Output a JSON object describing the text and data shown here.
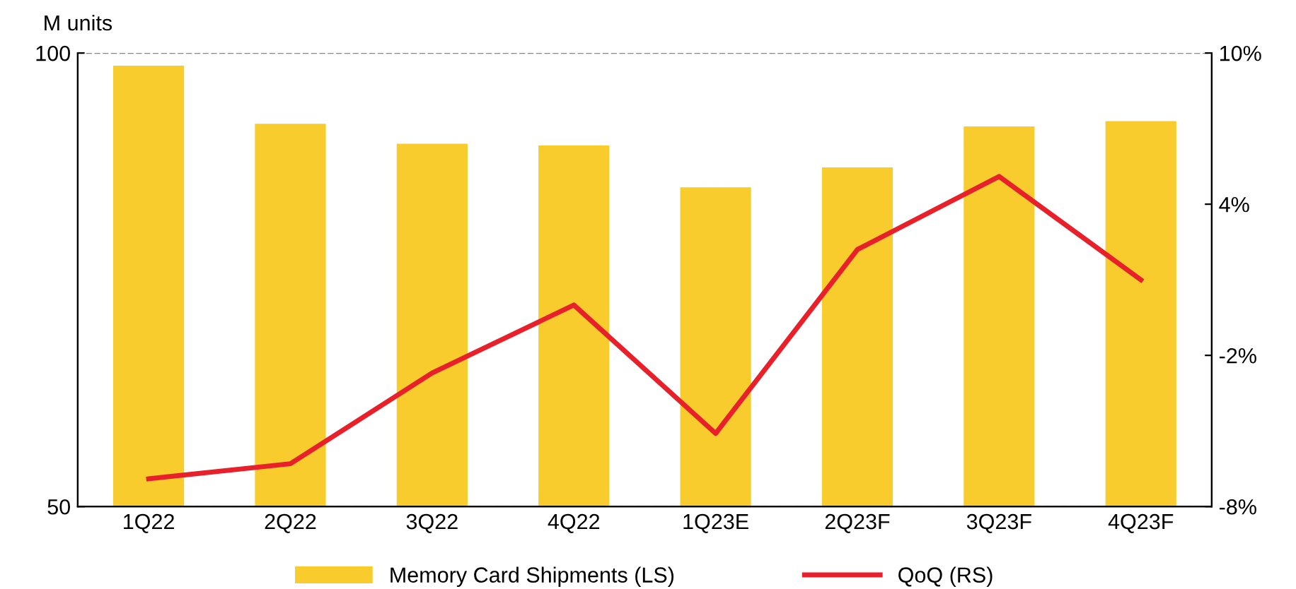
{
  "chart_data": {
    "type": "bar",
    "ylabel": "M units",
    "categories": [
      "1Q22",
      "2Q22",
      "3Q22",
      "4Q22",
      "1Q23E",
      "2Q23F",
      "3Q23F",
      "4Q23F"
    ],
    "series": [
      {
        "name": "Memory Card Shipments (LS)",
        "color": "#f9cc2e",
        "values": [
          98.6,
          92.2,
          90.0,
          89.8,
          85.2,
          87.4,
          91.9,
          92.5
        ]
      },
      {
        "name": "QoQ (RS)",
        "type": "line",
        "axis": "y2",
        "color": "#e8202a",
        "line_style": "solid",
        "marker": "none",
        "values": [
          -6.9,
          -6.3,
          -2.7,
          0.0,
          -5.1,
          2.2,
          5.1,
          1.0
        ]
      }
    ],
    "ylim": [
      50,
      100
    ],
    "yticks": [
      50,
      100
    ],
    "y2lim": [
      -8,
      10
    ],
    "y2ticks": [
      {
        "value": -8,
        "label": "-8%"
      },
      {
        "value": -2,
        "label": "-2%"
      },
      {
        "value": 4,
        "label": "4%"
      },
      {
        "value": 10,
        "label": "10%"
      }
    ],
    "grid": "y",
    "legend": "bottom"
  }
}
